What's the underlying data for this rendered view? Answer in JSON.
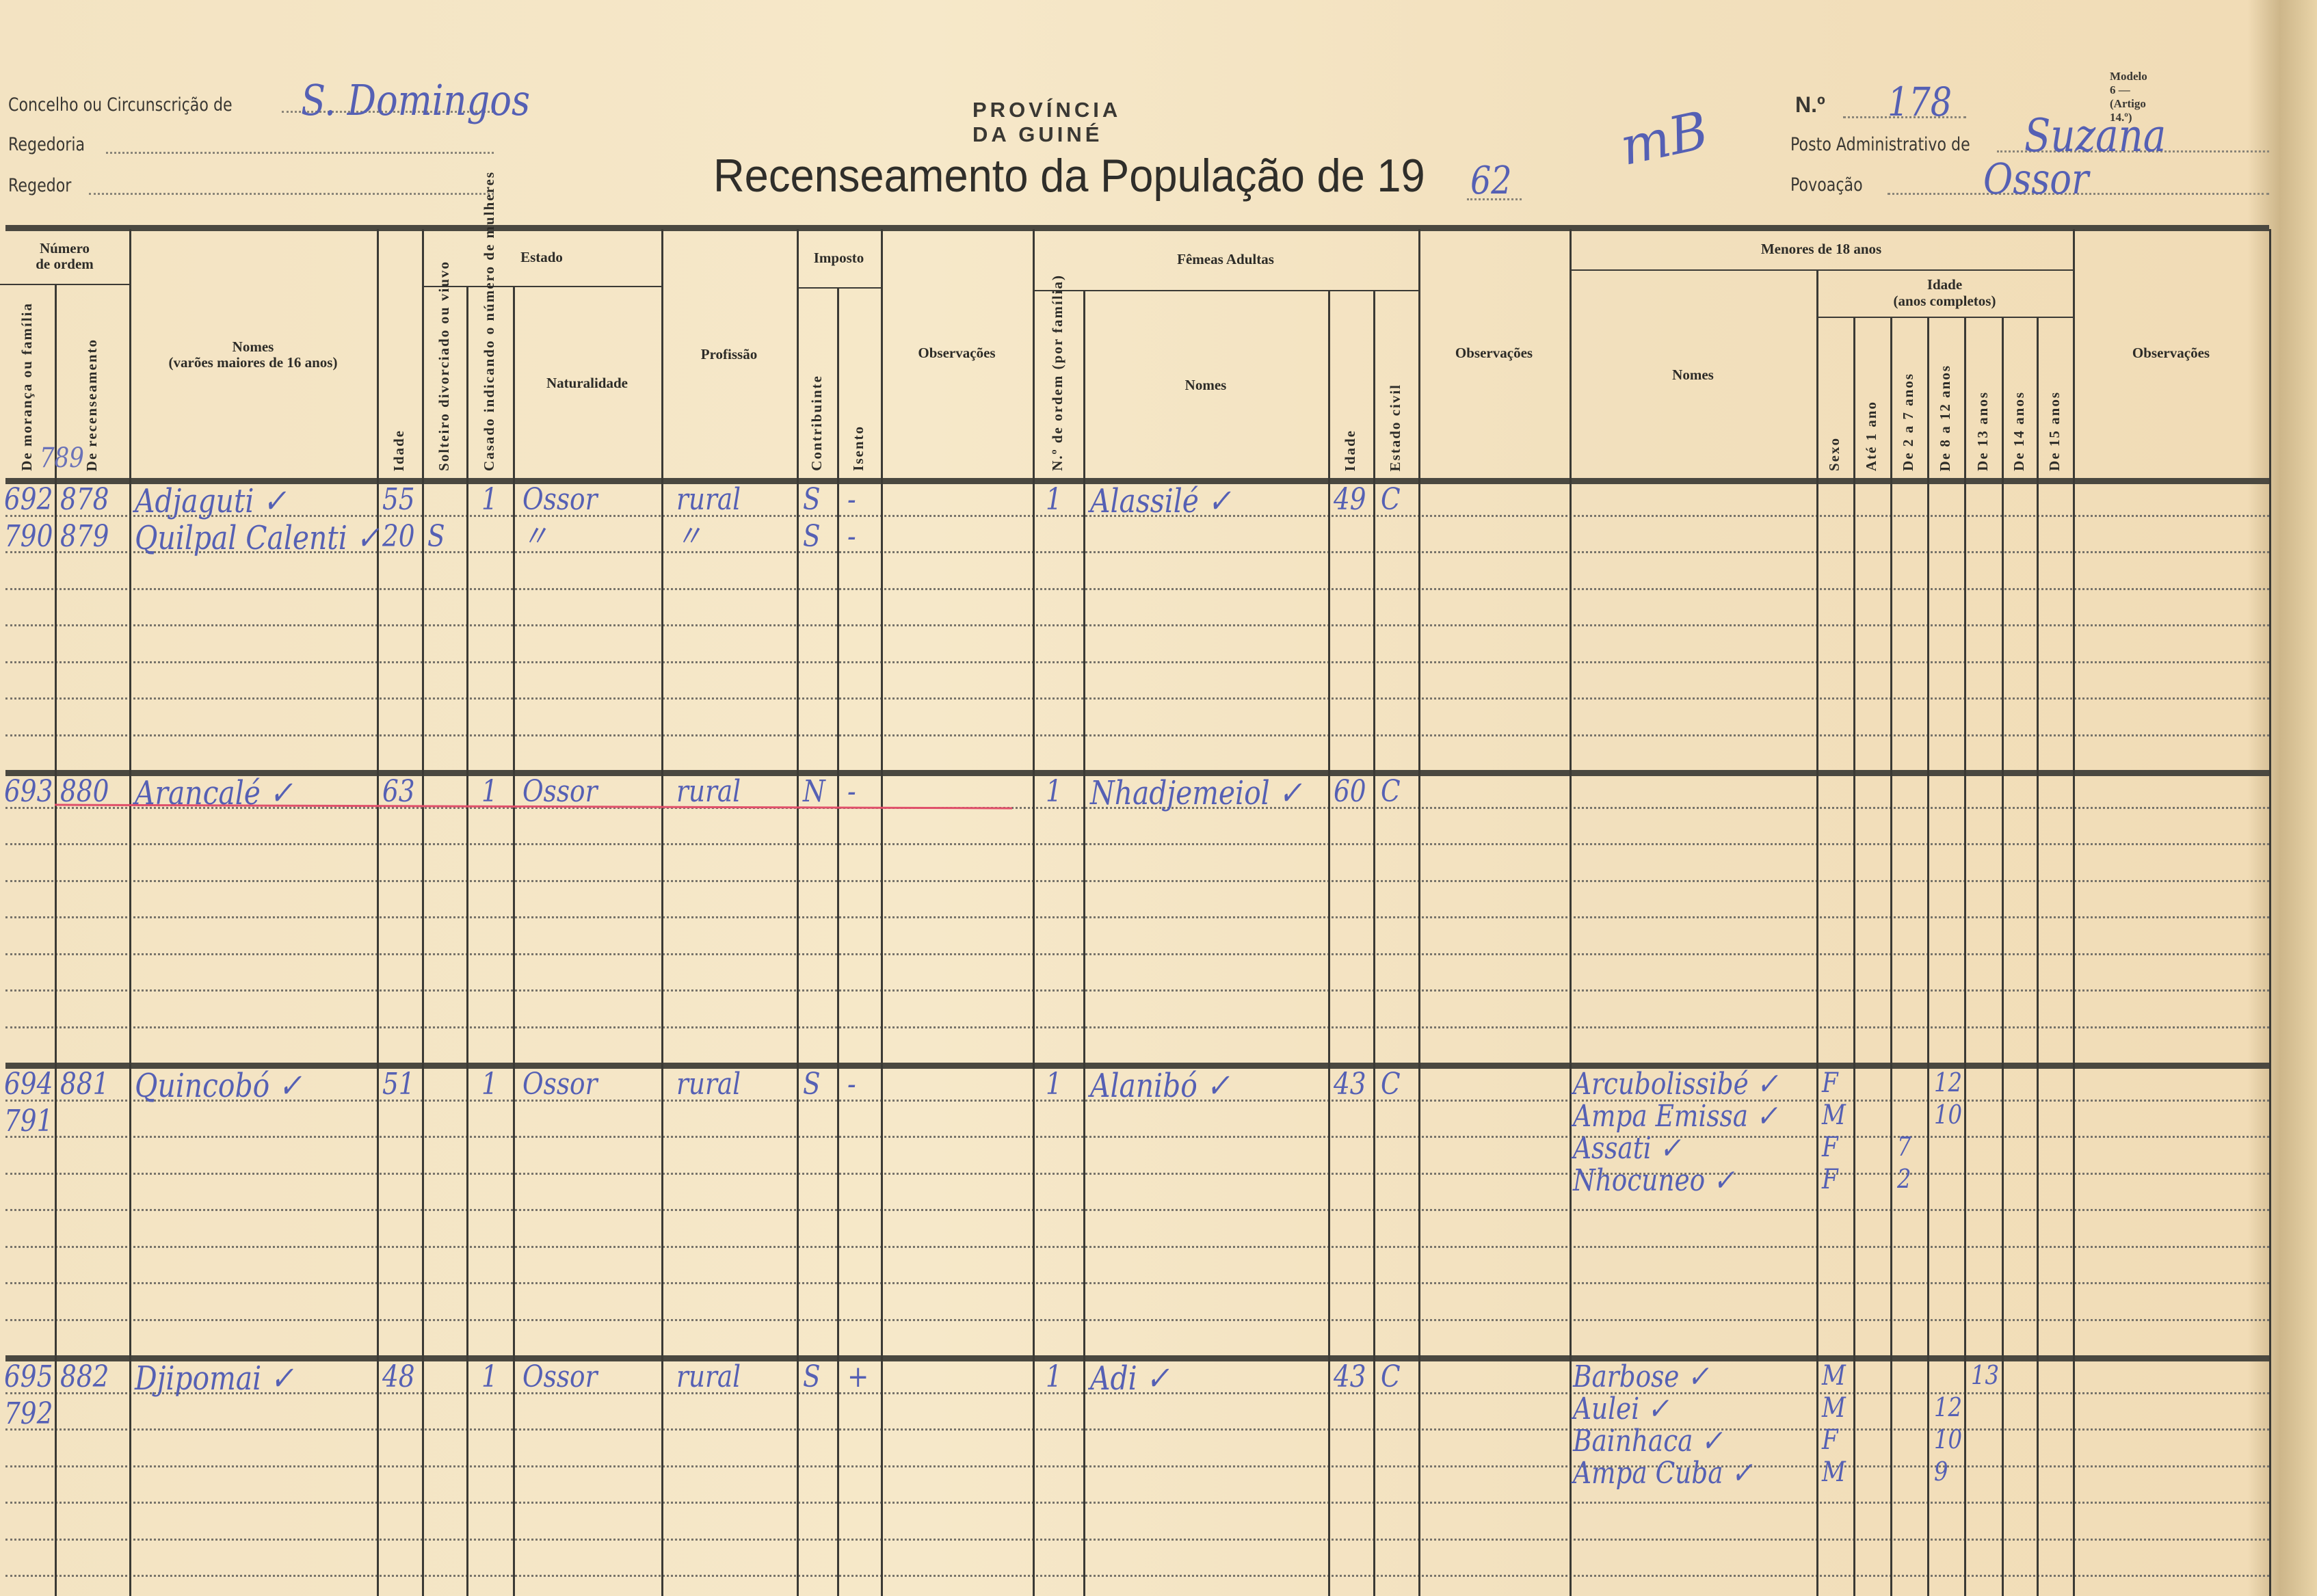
{
  "form": {
    "modelo": "Modelo 6 — (Artigo 14.º)",
    "province": "PROVÍNCIA DA GUINÉ",
    "title": "Recenseamento da População de 19",
    "year_handwritten": "62",
    "concelho_label": "Concelho ou Circunscrição de",
    "concelho_value": "S. Domingos",
    "regedoria_label": "Regedoria",
    "regedor_label": "Regedor",
    "numero_label": "N.º",
    "numero_value": "178",
    "posto_label": "Posto Administrativo de",
    "posto_value": "Suzana",
    "povoacao_label": "Povoação",
    "povoacao_value": "Ossor",
    "initials_mark": "mB"
  },
  "headers": {
    "numero_ordem": "Número\nde ordem",
    "de_moranca": "De morança ou família",
    "de_recenseamento": "De recenseamento",
    "nomes_varoes": "Nomes\n(varões maiores de 16 anos)",
    "idade": "Idade",
    "estado": "Estado",
    "solteiro": "Solteiro divorciado ou viuvo",
    "casado": "Casado indicando o número de mulheres",
    "naturalidade": "Naturalidade",
    "profissao": "Profissão",
    "imposto": "Imposto",
    "contribuinte": "Contribuinte",
    "isento": "Isento",
    "observacoes_1": "Observações",
    "femeas_adultas": "Fêmeas Adultas",
    "f_numero_ordem": "N.º de ordem (por família)",
    "f_nomes": "Nomes",
    "f_idade": "Idade",
    "f_estado_civil": "Estado civil",
    "observacoes_2": "Observações",
    "menores": "Menores de 18 anos",
    "m_nomes": "Nomes",
    "m_idade": "Idade\n(anos completos)",
    "sexo": "Sexo",
    "ate_1": "Até 1 ano",
    "de_2_7": "De 2 a 7 anos",
    "de_8_12": "De 8 a 12 anos",
    "de_13": "De 13 anos",
    "de_14": "De 14 anos",
    "de_15": "De 15 anos",
    "observacoes_3": "Observações"
  },
  "above_first_row_note": "789",
  "blocks": [
    {
      "men": [
        {
          "fam": "692",
          "census": "878",
          "name": "Adjaguti ✓",
          "age": "55",
          "single": "",
          "married": "1",
          "origin": "Ossor",
          "prof": "rural",
          "contrib": "S",
          "exempt": "-"
        },
        {
          "fam": "790",
          "census": "879",
          "name": "Quilpal Calenti ✓",
          "age": "20",
          "single": "S",
          "married": "",
          "origin": "〃",
          "prof": "〃",
          "contrib": "S",
          "exempt": "-"
        }
      ],
      "women": [
        {
          "order": "1",
          "name": "Alassilé ✓",
          "age": "49",
          "civil": "C"
        }
      ],
      "minors": [],
      "struck": false
    },
    {
      "men": [
        {
          "fam": "693",
          "census": "880",
          "name": "Arancalé ✓",
          "age": "63",
          "single": "",
          "married": "1",
          "origin": "Ossor",
          "prof": "rural",
          "contrib": "N",
          "exempt": "-"
        }
      ],
      "women": [
        {
          "order": "1",
          "name": "Nhadjemeiol ✓",
          "age": "60",
          "civil": "C"
        }
      ],
      "minors": [],
      "struck": true
    },
    {
      "men": [
        {
          "fam": "694",
          "census": "881",
          "name": "Quincobó ✓",
          "age": "51",
          "single": "",
          "married": "1",
          "origin": "Ossor",
          "prof": "rural",
          "contrib": "S",
          "exempt": "-"
        },
        {
          "fam": "791",
          "census": "",
          "name": "",
          "age": "",
          "single": "",
          "married": "",
          "origin": "",
          "prof": "",
          "contrib": "",
          "exempt": ""
        }
      ],
      "women": [
        {
          "order": "1",
          "name": "Alanibó ✓",
          "age": "43",
          "civil": "C"
        }
      ],
      "minors": [
        {
          "name": "Arcubolissibé ✓",
          "sex": "F",
          "age_column": "de_8_12",
          "age": "12"
        },
        {
          "name": "Ampa Emissa ✓",
          "sex": "M",
          "age_column": "de_8_12",
          "age": "10"
        },
        {
          "name": "Assati ✓",
          "sex": "F",
          "age_column": "de_2_7",
          "age": "7"
        },
        {
          "name": "Nhocuneo ✓",
          "sex": "F",
          "age_column": "de_2_7",
          "age": "2"
        }
      ],
      "struck": false
    },
    {
      "men": [
        {
          "fam": "695",
          "census": "882",
          "name": "Djipomai ✓",
          "age": "48",
          "single": "",
          "married": "1",
          "origin": "Ossor",
          "prof": "rural",
          "contrib": "S",
          "exempt": "+"
        },
        {
          "fam": "792",
          "census": "",
          "name": "",
          "age": "",
          "single": "",
          "married": "",
          "origin": "",
          "prof": "",
          "contrib": "",
          "exempt": ""
        }
      ],
      "women": [
        {
          "order": "1",
          "name": "Adi ✓",
          "age": "43",
          "civil": "C"
        }
      ],
      "minors": [
        {
          "name": "Barbose ✓",
          "sex": "M",
          "age_column": "de_13",
          "age": "13"
        },
        {
          "name": "Aulei ✓",
          "sex": "M",
          "age_column": "de_8_12",
          "age": "12"
        },
        {
          "name": "Bainhaca ✓",
          "sex": "F",
          "age_column": "de_8_12",
          "age": "10"
        },
        {
          "name": "Ampa Cuba ✓",
          "sex": "M",
          "age_column": "de_8_12",
          "age": "9"
        }
      ],
      "struck": false
    }
  ],
  "colors": {
    "paper": "#f5e6c4",
    "ink_print": "#2d2c28",
    "ink_handwriting": "#5560b4",
    "strike_red": "#e0506a"
  }
}
